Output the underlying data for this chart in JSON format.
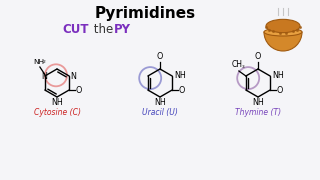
{
  "title": "Pyrimidines",
  "subtitle_cut": "CUT",
  "subtitle_the": " the ",
  "subtitle_py": "PY",
  "subtitle_color_cut": "#7B2FBE",
  "subtitle_color_the": "#333333",
  "subtitle_color_py": "#7B2FBE",
  "label_cytosine": "Cytosine (C)",
  "label_uracil": "Uracil (U)",
  "label_thymine": "Thymine (T)",
  "color_cytosine": "#cc2222",
  "color_uracil": "#4444bb",
  "color_thymine": "#7744bb",
  "bg_color": "#f5f5f8",
  "circle_color_c": "#e89090",
  "circle_color_u": "#9090d0",
  "circle_color_t": "#b090c0"
}
